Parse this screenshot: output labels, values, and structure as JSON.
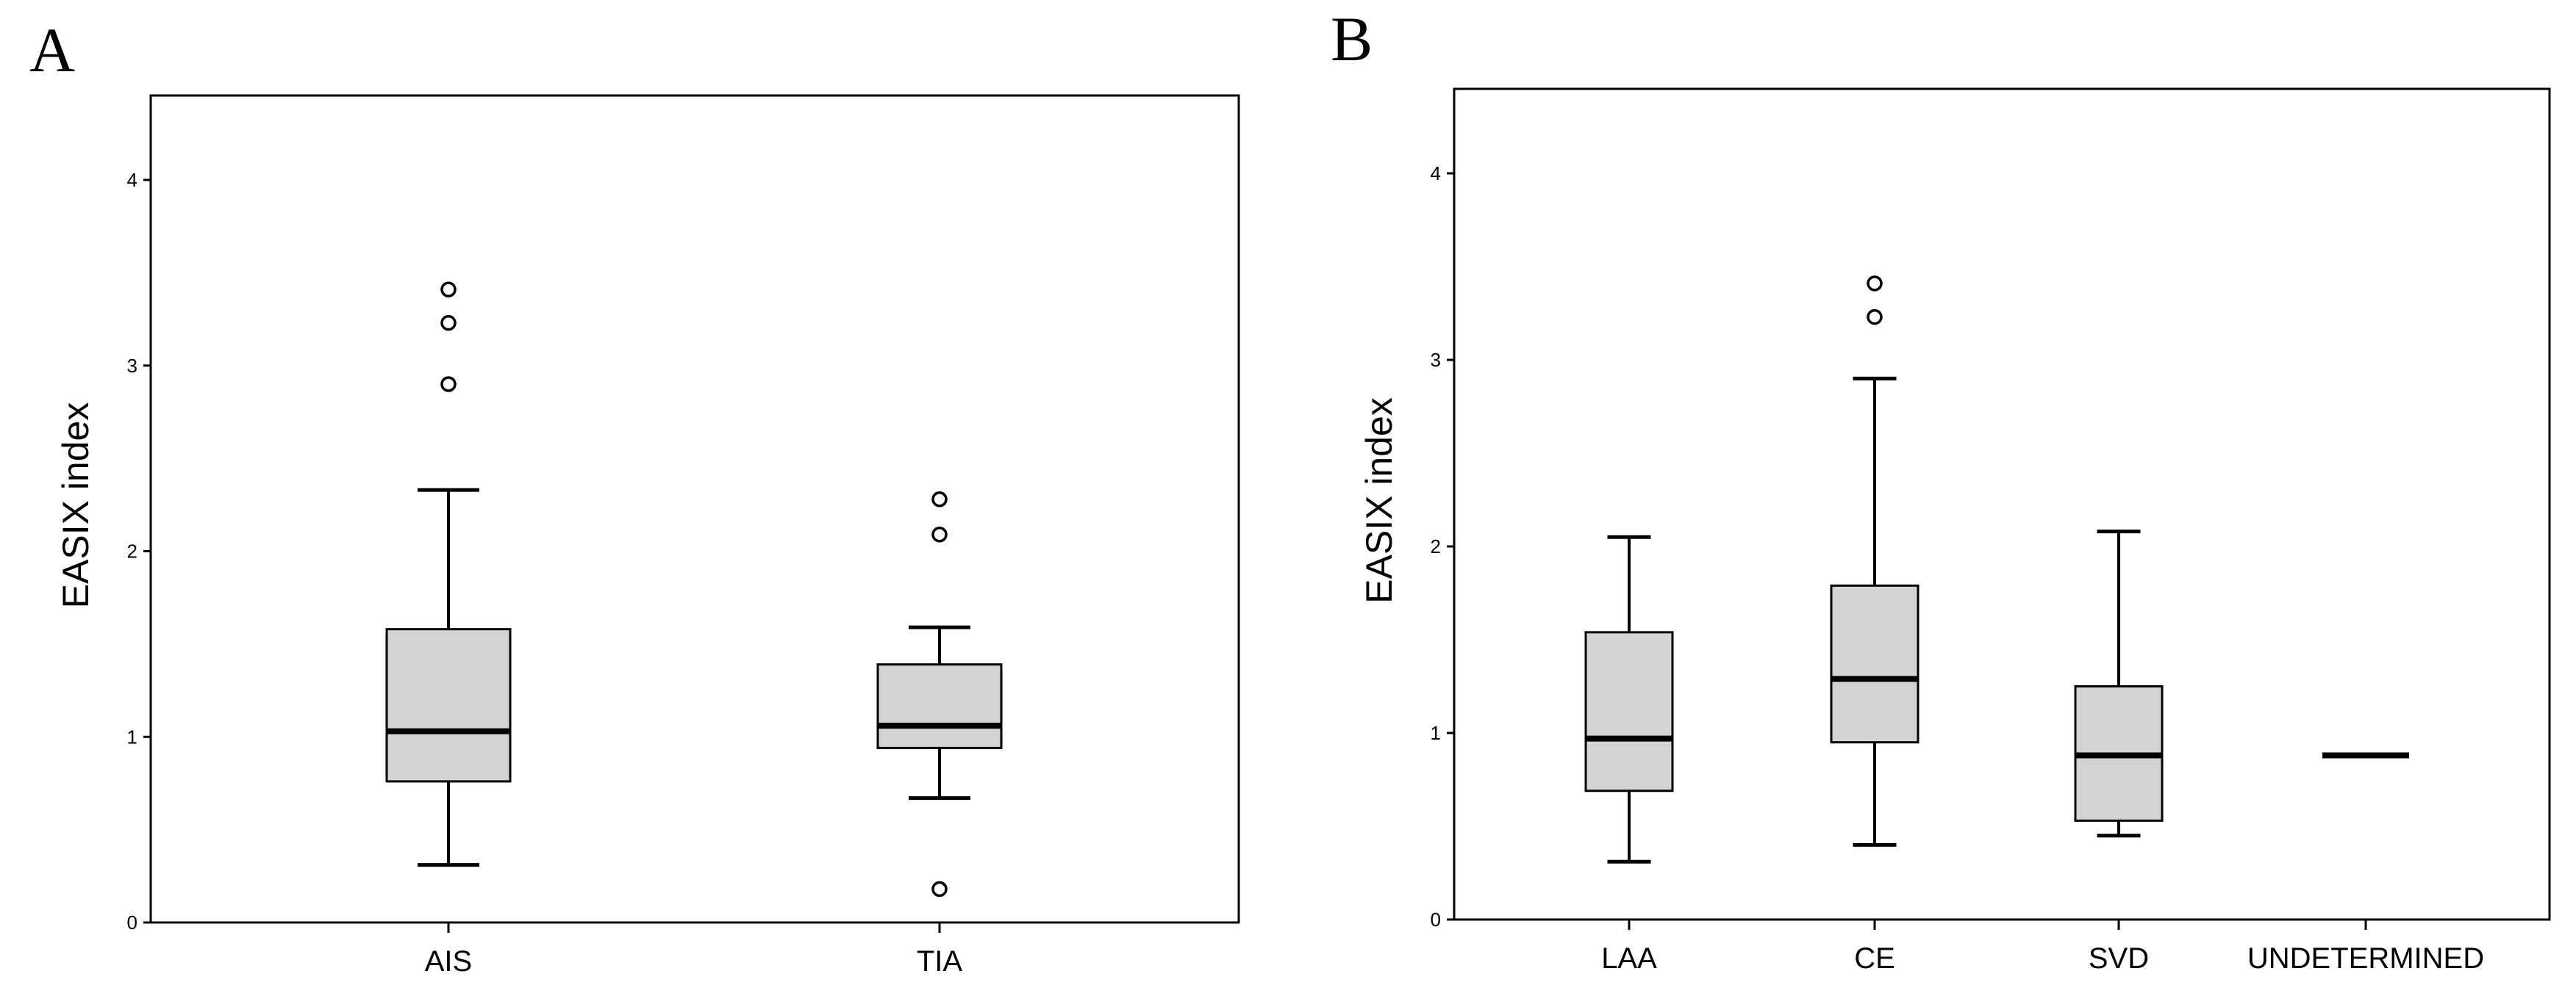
{
  "chart_data": [
    {
      "type": "box",
      "panel_label": "A",
      "title": "",
      "xlabel": "",
      "ylabel": "EASIX index",
      "ylim": [
        0,
        4.45
      ],
      "yticks": [
        "0",
        "1",
        "2",
        "3",
        "4"
      ],
      "categories": [
        "AIS",
        "TIA"
      ],
      "boxes": [
        {
          "category": "AIS",
          "min": 0.31,
          "q1": 0.76,
          "median": 1.03,
          "q3": 1.58,
          "max": 2.33,
          "outliers": [
            2.9,
            3.23,
            3.41
          ]
        },
        {
          "category": "TIA",
          "min": 0.67,
          "q1": 0.94,
          "median": 1.06,
          "q3": 1.39,
          "max": 1.59,
          "outliers": [
            0.18,
            2.09,
            2.28
          ]
        }
      ]
    },
    {
      "type": "box",
      "panel_label": "B",
      "title": "",
      "xlabel": "",
      "ylabel": "EASIX index",
      "ylim": [
        0,
        4.45
      ],
      "yticks": [
        "0",
        "1",
        "2",
        "3",
        "4"
      ],
      "categories": [
        "LAA",
        "CE",
        "SVD",
        "UNDETERMINED"
      ],
      "boxes": [
        {
          "category": "LAA",
          "min": 0.31,
          "q1": 0.69,
          "median": 0.97,
          "q3": 1.54,
          "max": 2.05,
          "outliers": []
        },
        {
          "category": "CE",
          "min": 0.4,
          "q1": 0.95,
          "median": 1.29,
          "q3": 1.79,
          "max": 2.9,
          "outliers": [
            3.23,
            3.41
          ]
        },
        {
          "category": "SVD",
          "min": 0.45,
          "q1": 0.53,
          "median": 0.88,
          "q3": 1.25,
          "max": 2.08,
          "outliers": []
        },
        {
          "category": "UNDETERMINED",
          "min": 0.88,
          "q1": 0.88,
          "median": 0.88,
          "q3": 0.88,
          "max": 0.88,
          "outliers": []
        }
      ]
    }
  ]
}
